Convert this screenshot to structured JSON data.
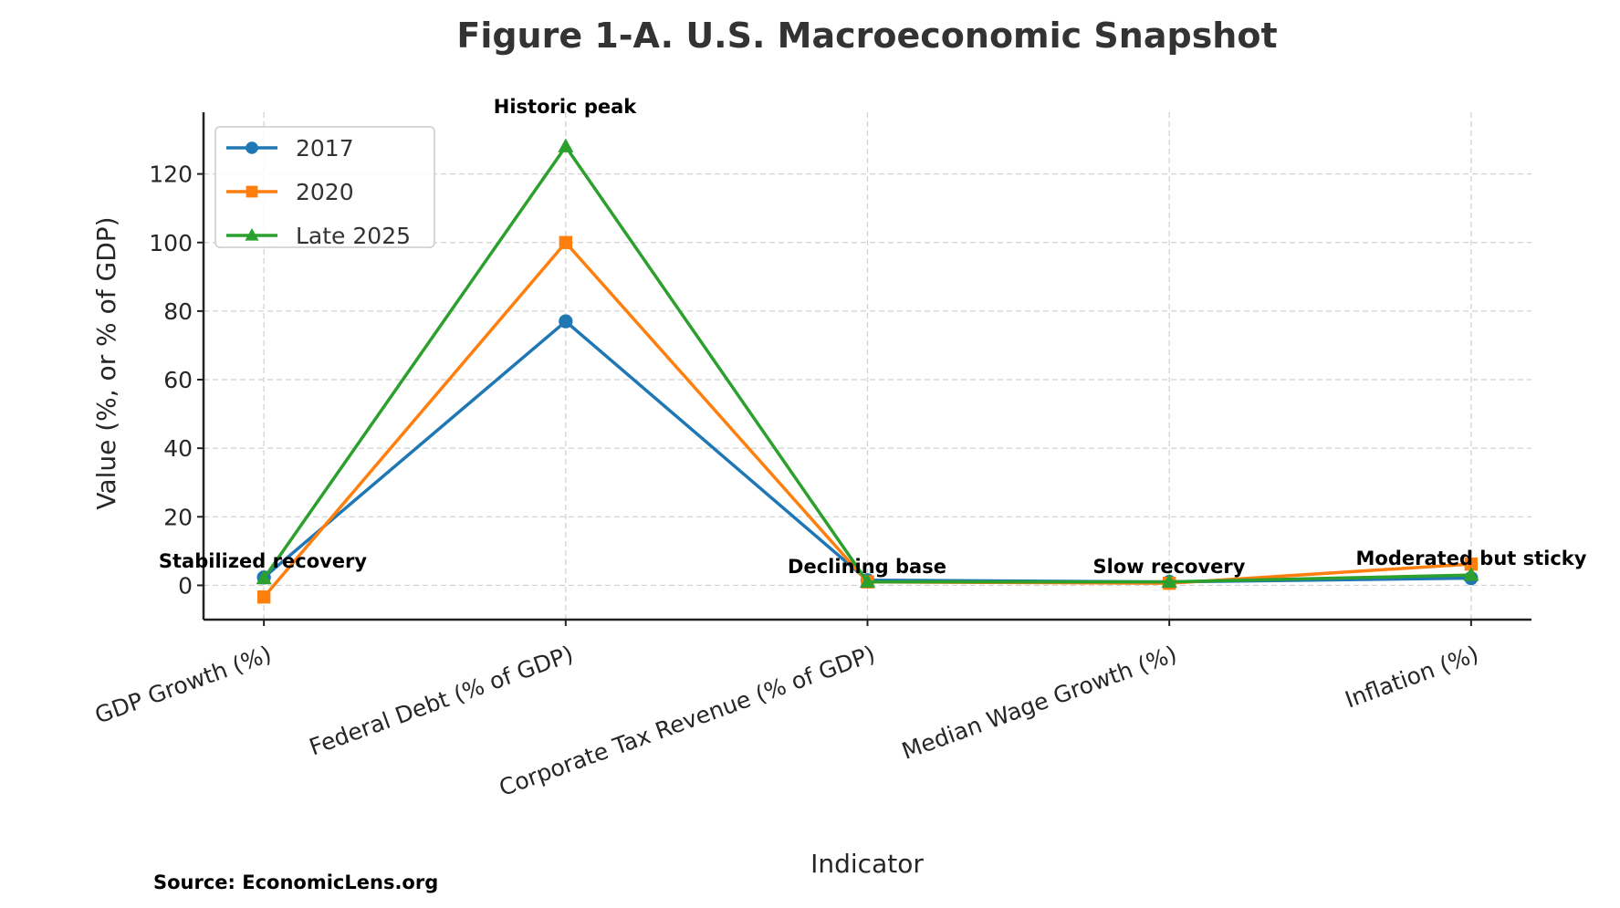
{
  "chart_data": {
    "type": "line",
    "title": "Figure 1-A. U.S. Macroeconomic Snapshot",
    "xlabel": "Indicator",
    "ylabel": "Value (%, or % of GDP)",
    "categories": [
      "GDP Growth (%)",
      "Federal Debt (% of GDP)",
      "Corporate Tax Revenue (% of GDP)",
      "Median Wage Growth (%)",
      "Inflation (%)"
    ],
    "yticks": [
      0,
      20,
      40,
      60,
      80,
      100,
      120
    ],
    "ylim": [
      -10,
      138
    ],
    "grid": true,
    "legend_position": "top-left",
    "series": [
      {
        "name": "2017",
        "color": "#1f77b4",
        "marker": "circle",
        "values": [
          2.3,
          77,
          1.5,
          1.0,
          2.1
        ]
      },
      {
        "name": "2020",
        "color": "#ff7f0e",
        "marker": "square",
        "values": [
          -3.4,
          100,
          1.0,
          0.6,
          6.2
        ]
      },
      {
        "name": "Late 2025",
        "color": "#2ca02c",
        "marker": "triangle",
        "values": [
          2.0,
          128,
          1.0,
          1.0,
          3.0
        ]
      }
    ],
    "annotations": [
      "Stabilized recovery",
      "Historic peak",
      "Declining base",
      "Slow recovery",
      "Moderated but sticky"
    ],
    "source": "Source: EconomicLens.org"
  }
}
